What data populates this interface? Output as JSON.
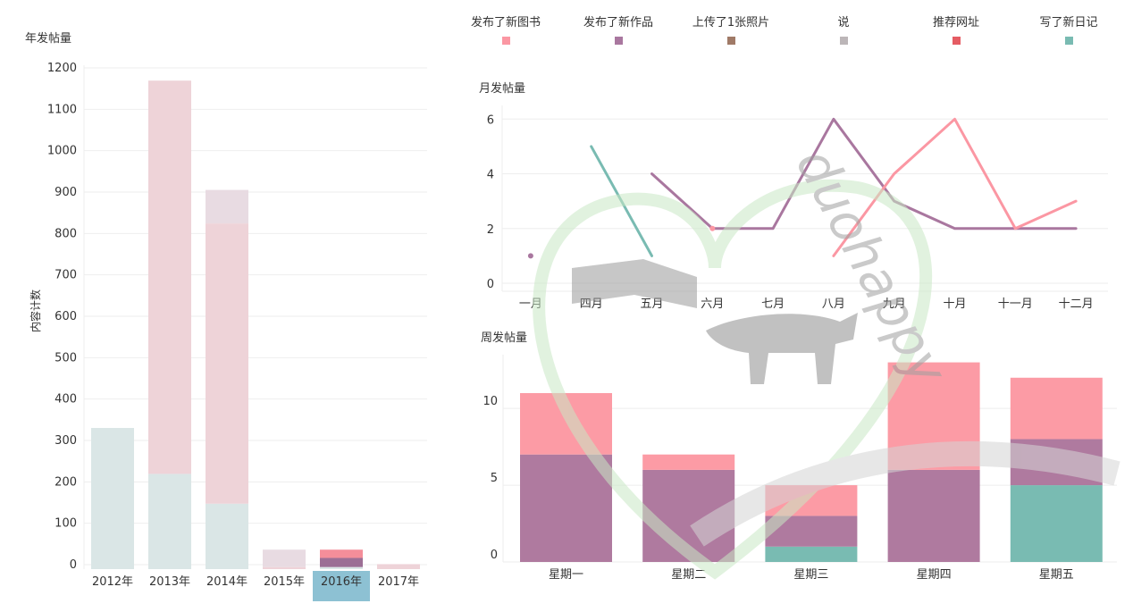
{
  "legend": {
    "items": [
      {
        "label": "发布了新图书",
        "color": "#fb97a3"
      },
      {
        "label": "发布了新作品",
        "color": "#a9779f"
      },
      {
        "label": "上传了1张照片",
        "color": "#a07a67"
      },
      {
        "label": "说",
        "color": "#bcb6b8"
      },
      {
        "label": "推荐网址",
        "color": "#e55c63"
      },
      {
        "label": "写了新日记",
        "color": "#79bbb2"
      }
    ]
  },
  "chart_data": [
    {
      "type": "bar",
      "title": "年发帖量",
      "ylabel": "内容计数",
      "xlabel": "",
      "categories": [
        "2012年",
        "2013年",
        "2014年",
        "2015年",
        "2016年",
        "2017年"
      ],
      "selected_category": "2016年",
      "ylim": [
        0,
        1200
      ],
      "yticks": [
        0,
        100,
        200,
        300,
        400,
        500,
        600,
        700,
        800,
        900,
        1000,
        1100,
        1200
      ],
      "stacked": true,
      "series": [
        {
          "name": "写了新日记",
          "color": "#dae6e6",
          "values": [
            341,
            230,
            158,
            0,
            5,
            0
          ]
        },
        {
          "name": "发布了新作品",
          "color": "#eed3d8",
          "values": [
            0,
            950,
            677,
            5,
            0,
            12
          ]
        },
        {
          "name": "说",
          "color": "#e8dbe2",
          "values": [
            0,
            0,
            81,
            42,
            0,
            0
          ]
        },
        {
          "name": "发布了新作品",
          "color": "#9c6f95",
          "values": [
            0,
            0,
            0,
            0,
            22,
            0
          ]
        },
        {
          "name": "发布了新图书",
          "color": "#f48e9a",
          "values": [
            0,
            0,
            0,
            0,
            20,
            0
          ]
        }
      ]
    },
    {
      "type": "line",
      "title": "月发帖量",
      "xlabel": "",
      "ylabel": "",
      "categories": [
        "一月",
        "四月",
        "五月",
        "六月",
        "七月",
        "八月",
        "九月",
        "十月",
        "十一月",
        "十二月"
      ],
      "ylim": [
        0,
        6.5
      ],
      "yticks": [
        0,
        2,
        4,
        6
      ],
      "series": [
        {
          "name": "发布了新作品",
          "color": "#a9779f",
          "values": [
            1,
            null,
            4,
            2,
            2,
            6,
            3,
            2,
            2,
            2
          ]
        },
        {
          "name": "写了新日记",
          "color": "#79bbb2",
          "values": [
            null,
            5,
            1,
            null,
            null,
            null,
            null,
            null,
            null,
            null
          ]
        },
        {
          "name": "发布了新图书",
          "color": "#fb97a3",
          "values": [
            null,
            null,
            null,
            2,
            null,
            1,
            4,
            6,
            2,
            3
          ]
        }
      ]
    },
    {
      "type": "bar",
      "title": "周发帖量",
      "xlabel": "",
      "ylabel": "",
      "categories": [
        "星期一",
        "星期二",
        "星期三",
        "星期四",
        "星期五"
      ],
      "ylim": [
        0,
        13.5
      ],
      "yticks": [
        0,
        5,
        10
      ],
      "stacked": true,
      "series": [
        {
          "name": "写了新日记",
          "color": "#79bbb2",
          "values": [
            0,
            0,
            1,
            0,
            5
          ]
        },
        {
          "name": "发布了新作品",
          "color": "#af7a9f",
          "values": [
            7,
            6,
            2,
            6,
            3
          ]
        },
        {
          "name": "发布了新图书",
          "color": "#fc9ba5",
          "values": [
            4,
            1,
            2,
            7,
            4
          ]
        }
      ]
    }
  ]
}
